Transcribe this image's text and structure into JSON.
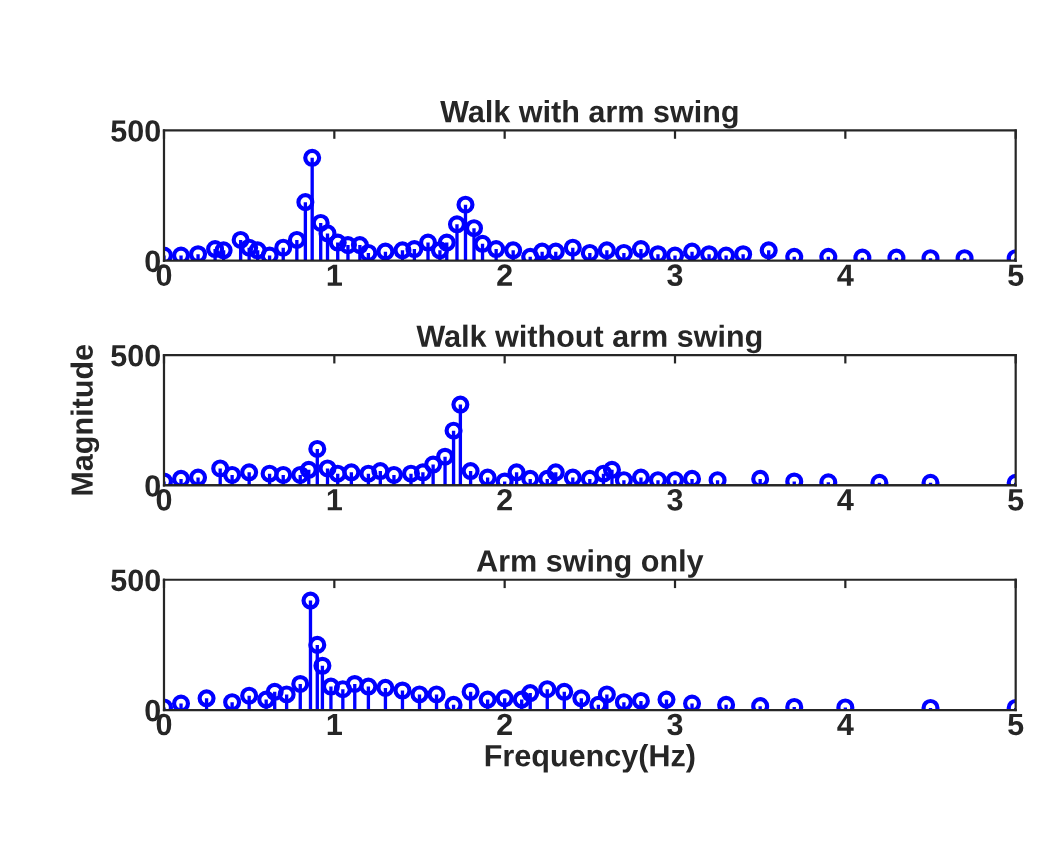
{
  "chart_data": [
    {
      "type": "lollipop",
      "title": "Walk with arm swing",
      "color": "#0000ff",
      "marker": "circle",
      "xlim": [
        0,
        5
      ],
      "ylim": [
        0,
        500
      ],
      "xticks": [
        0,
        1,
        2,
        3,
        4,
        5
      ],
      "yticks": [
        0,
        500
      ],
      "x": [
        0,
        0.1,
        0.2,
        0.3,
        0.35,
        0.45,
        0.5,
        0.55,
        0.62,
        0.7,
        0.78,
        0.83,
        0.87,
        0.92,
        0.96,
        1.02,
        1.08,
        1.15,
        1.2,
        1.3,
        1.4,
        1.47,
        1.55,
        1.62,
        1.66,
        1.72,
        1.77,
        1.82,
        1.87,
        1.95,
        2.05,
        2.15,
        2.22,
        2.3,
        2.4,
        2.5,
        2.6,
        2.7,
        2.8,
        2.9,
        3.0,
        3.1,
        3.2,
        3.3,
        3.4,
        3.55,
        3.7,
        3.9,
        4.1,
        4.3,
        4.5,
        4.7,
        5.0
      ],
      "values": [
        20,
        20,
        25,
        45,
        40,
        80,
        50,
        40,
        20,
        50,
        80,
        225,
        395,
        145,
        105,
        70,
        60,
        60,
        30,
        35,
        40,
        45,
        70,
        40,
        70,
        140,
        215,
        125,
        65,
        45,
        40,
        15,
        35,
        35,
        50,
        30,
        40,
        30,
        45,
        25,
        20,
        35,
        25,
        20,
        25,
        40,
        15,
        15,
        12,
        12,
        10,
        10,
        10
      ]
    },
    {
      "type": "lollipop",
      "title": "Walk without arm swing",
      "ylabel": "Magnitude",
      "color": "#0000ff",
      "marker": "circle",
      "xlim": [
        0,
        5
      ],
      "ylim": [
        0,
        500
      ],
      "xticks": [
        0,
        1,
        2,
        3,
        4,
        5
      ],
      "yticks": [
        0,
        500
      ],
      "x": [
        0,
        0.1,
        0.2,
        0.33,
        0.4,
        0.5,
        0.62,
        0.7,
        0.8,
        0.85,
        0.9,
        0.96,
        1.02,
        1.1,
        1.2,
        1.27,
        1.35,
        1.45,
        1.52,
        1.58,
        1.65,
        1.7,
        1.74,
        1.8,
        1.9,
        2.0,
        2.07,
        2.15,
        2.25,
        2.3,
        2.4,
        2.5,
        2.58,
        2.63,
        2.7,
        2.8,
        2.9,
        3.0,
        3.1,
        3.25,
        3.5,
        3.7,
        3.9,
        4.2,
        4.5,
        5.0
      ],
      "values": [
        15,
        25,
        30,
        65,
        40,
        50,
        45,
        40,
        40,
        60,
        140,
        65,
        45,
        50,
        45,
        55,
        40,
        45,
        50,
        80,
        110,
        210,
        310,
        55,
        30,
        15,
        50,
        25,
        25,
        50,
        30,
        25,
        45,
        60,
        20,
        30,
        20,
        20,
        25,
        20,
        25,
        15,
        12,
        10,
        10,
        10
      ]
    },
    {
      "type": "lollipop",
      "title": "Arm swing only",
      "xlabel": "Frequency(Hz)",
      "color": "#0000ff",
      "marker": "circle",
      "xlim": [
        0,
        5
      ],
      "ylim": [
        0,
        500
      ],
      "xticks": [
        0,
        1,
        2,
        3,
        4,
        5
      ],
      "yticks": [
        0,
        500
      ],
      "x": [
        0,
        0.1,
        0.25,
        0.4,
        0.5,
        0.6,
        0.65,
        0.72,
        0.8,
        0.86,
        0.9,
        0.93,
        0.98,
        1.05,
        1.12,
        1.2,
        1.3,
        1.4,
        1.5,
        1.6,
        1.7,
        1.8,
        1.9,
        2.0,
        2.1,
        2.15,
        2.25,
        2.35,
        2.45,
        2.55,
        2.6,
        2.7,
        2.8,
        2.95,
        3.1,
        3.3,
        3.5,
        3.7,
        4.0,
        4.5,
        5.0
      ],
      "values": [
        10,
        25,
        45,
        30,
        55,
        40,
        70,
        60,
        100,
        420,
        250,
        170,
        90,
        80,
        100,
        90,
        85,
        75,
        60,
        60,
        20,
        70,
        40,
        45,
        40,
        65,
        80,
        70,
        45,
        20,
        60,
        30,
        35,
        40,
        25,
        20,
        15,
        12,
        10,
        8,
        8
      ]
    }
  ]
}
